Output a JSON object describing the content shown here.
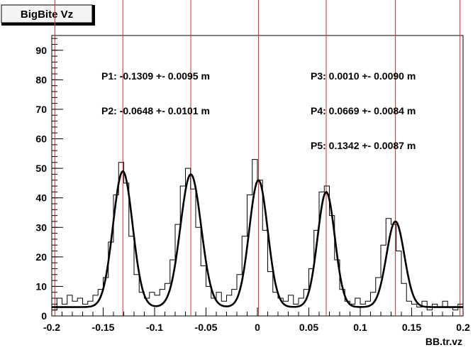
{
  "chart_data": {
    "type": "line",
    "title": "BigBite Vz",
    "xlabel": "BB.tr.vz",
    "ylabel": "",
    "xlim": [
      -0.2,
      0.2
    ],
    "ylim": [
      0,
      95
    ],
    "x_ticks": [
      "-0.2",
      "-0.15",
      "-0.1",
      "-0.05",
      "0",
      "0.05",
      "0.1",
      "0.15",
      "0.2"
    ],
    "y_ticks": [
      "0",
      "10",
      "20",
      "30",
      "40",
      "50",
      "60",
      "70",
      "80",
      "90"
    ],
    "grid": false,
    "red_lines_x": [
      -0.197,
      -0.1309,
      -0.0648,
      0.001,
      0.0669,
      0.1342,
      0.197
    ],
    "annotations": [
      "P1: -0.1309 +- 0.0095 m",
      "P2: -0.0648 +- 0.0101 m",
      "P3: 0.0010 +- 0.0090 m",
      "P4: 0.0669 +- 0.0084 m",
      "P5: 0.1342 +- 0.0087 m"
    ],
    "fit": {
      "baseline": 3,
      "peaks": [
        {
          "center": -0.1309,
          "sigma": 0.0095,
          "amplitude": 46
        },
        {
          "center": -0.0648,
          "sigma": 0.0101,
          "amplitude": 45
        },
        {
          "center": 0.001,
          "sigma": 0.009,
          "amplitude": 43
        },
        {
          "center": 0.0669,
          "sigma": 0.0084,
          "amplitude": 39
        },
        {
          "center": 0.1342,
          "sigma": 0.0087,
          "amplitude": 29
        }
      ]
    },
    "series": [
      {
        "style": "histogram",
        "x": [
          -0.2,
          -0.195,
          -0.19,
          -0.185,
          -0.18,
          -0.175,
          -0.17,
          -0.165,
          -0.16,
          -0.155,
          -0.15,
          -0.145,
          -0.14,
          -0.135,
          -0.13,
          -0.125,
          -0.12,
          -0.115,
          -0.11,
          -0.105,
          -0.1,
          -0.095,
          -0.09,
          -0.085,
          -0.08,
          -0.075,
          -0.07,
          -0.065,
          -0.06,
          -0.055,
          -0.05,
          -0.045,
          -0.04,
          -0.035,
          -0.03,
          -0.025,
          -0.02,
          -0.015,
          -0.01,
          -0.005,
          0.0,
          0.005,
          0.01,
          0.015,
          0.02,
          0.025,
          0.03,
          0.035,
          0.04,
          0.045,
          0.05,
          0.055,
          0.06,
          0.065,
          0.07,
          0.075,
          0.08,
          0.085,
          0.09,
          0.095,
          0.1,
          0.105,
          0.11,
          0.115,
          0.12,
          0.125,
          0.13,
          0.135,
          0.14,
          0.145,
          0.15,
          0.155,
          0.16,
          0.165,
          0.17,
          0.175,
          0.18,
          0.185,
          0.19,
          0.195
        ],
        "values": [
          2,
          6,
          4,
          7,
          5,
          6,
          4,
          5,
          7,
          9,
          13,
          25,
          41,
          52,
          45,
          27,
          14,
          8,
          6,
          8,
          7,
          9,
          11,
          19,
          31,
          44,
          50,
          43,
          30,
          17,
          10,
          6,
          8,
          5,
          7,
          9,
          14,
          27,
          41,
          53,
          46,
          29,
          15,
          8,
          6,
          5,
          7,
          4,
          6,
          9,
          16,
          29,
          42,
          44,
          34,
          19,
          9,
          5,
          4,
          6,
          4,
          5,
          8,
          13,
          24,
          33,
          31,
          22,
          11,
          5,
          4,
          3,
          5,
          2,
          4,
          3,
          5,
          3,
          2,
          4
        ]
      }
    ]
  }
}
